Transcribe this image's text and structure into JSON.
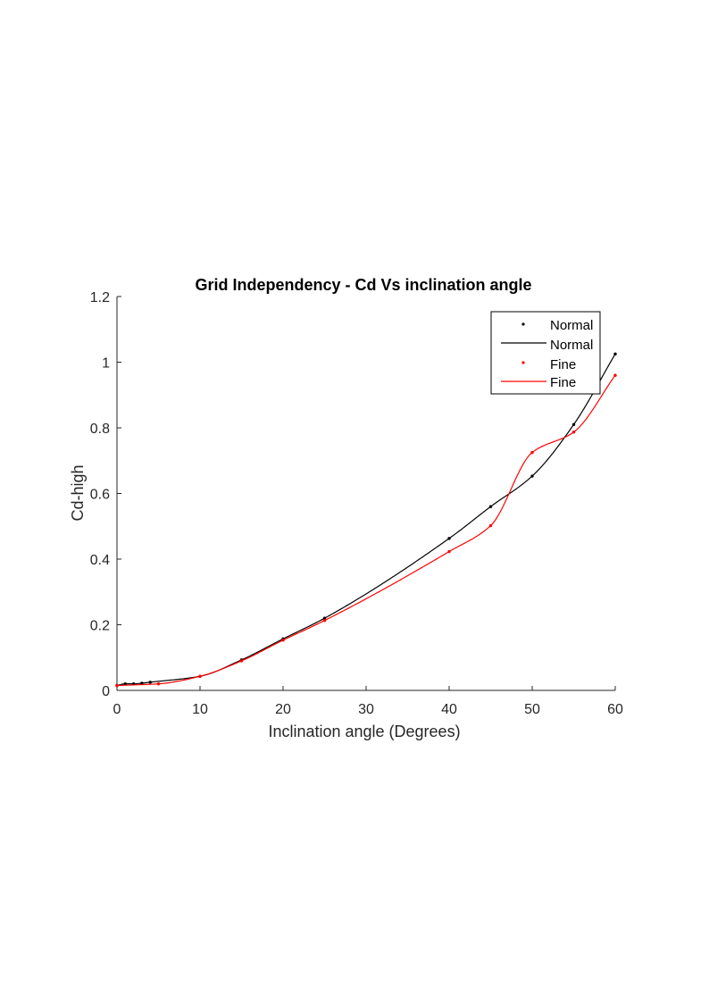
{
  "chart_data": {
    "type": "line",
    "title": "Grid Independency - Cd Vs  inclination angle",
    "xlabel": "Inclination angle (Degrees)",
    "ylabel": "Cd-high",
    "xlim": [
      0,
      60
    ],
    "ylim": [
      0,
      1.2
    ],
    "xticks": [
      "0",
      "10",
      "20",
      "30",
      "40",
      "50",
      "60"
    ],
    "yticks": [
      "0",
      "0.2",
      "0.4",
      "0.6",
      "0.8",
      "1",
      "1.2"
    ],
    "grid": false,
    "legend_position": "top-right",
    "legend": [
      "Normal",
      "Normal",
      "Fine",
      "Fine"
    ],
    "series": [
      {
        "name": "Normal",
        "color": "#000000",
        "x": [
          0,
          1,
          2,
          3,
          4,
          10,
          15,
          20,
          25,
          40,
          45,
          50,
          55,
          60
        ],
        "y": [
          0.015,
          0.02,
          0.02,
          0.022,
          0.025,
          0.043,
          0.093,
          0.157,
          0.22,
          0.463,
          0.56,
          0.653,
          0.81,
          1.025
        ]
      },
      {
        "name": "Fine",
        "color": "#ff0000",
        "x": [
          0,
          5,
          10,
          15,
          20,
          25,
          40,
          45,
          50,
          55,
          60
        ],
        "y": [
          0.015,
          0.02,
          0.043,
          0.09,
          0.153,
          0.213,
          0.423,
          0.502,
          0.725,
          0.787,
          0.96
        ]
      }
    ]
  }
}
